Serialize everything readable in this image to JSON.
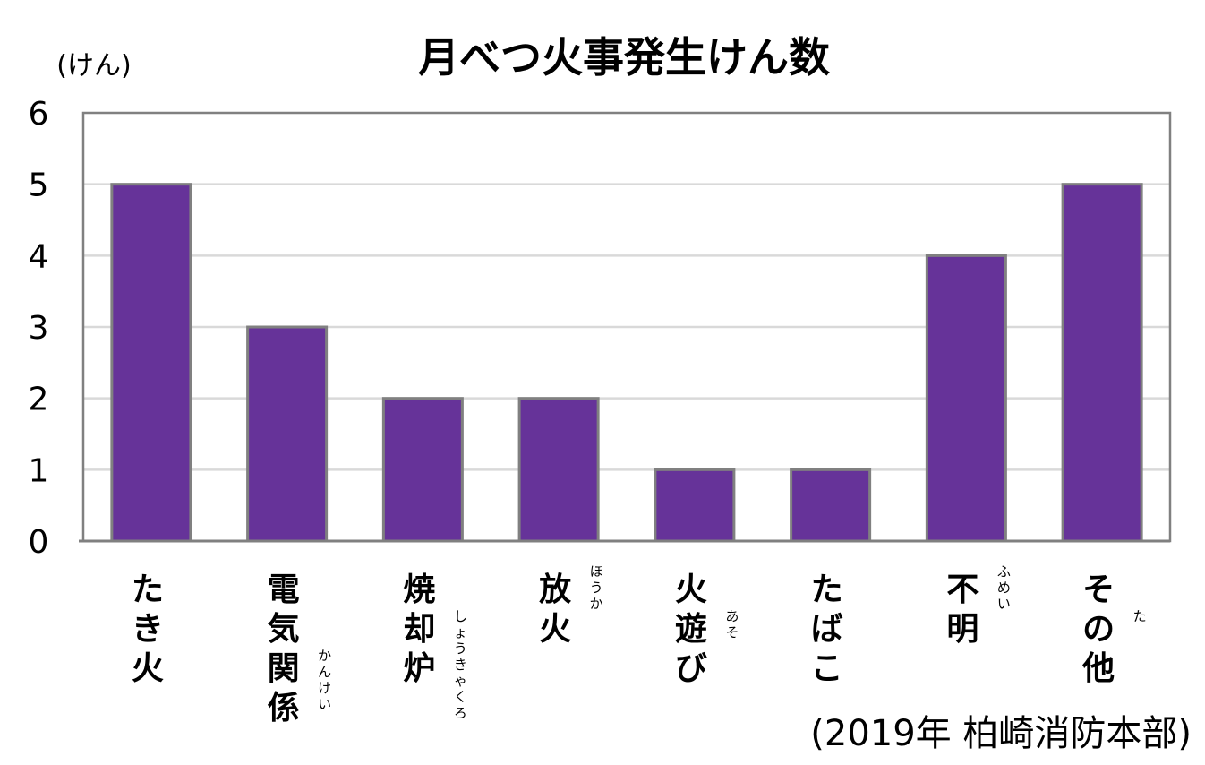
{
  "chart_data": {
    "type": "bar",
    "title": "月べつ火事発生けん数",
    "ylabel": "(けん)",
    "xlabel": "",
    "source_note": "(2019年 柏崎消防本部)",
    "ylim": [
      0,
      6
    ],
    "yticks": [
      "0",
      "1",
      "2",
      "3",
      "4",
      "5",
      "6"
    ],
    "grid": true,
    "legend": "none",
    "categories": [
      "たき火",
      "電気関係",
      "焼却炉",
      "放火",
      "火遊び",
      "たばこ",
      "不明",
      "その他"
    ],
    "category_readings": [
      "",
      "かんけい",
      "しょうきゃくろ",
      "ほうか",
      "あそ",
      "",
      "ふめい",
      "た"
    ],
    "values": [
      5,
      3,
      2,
      2,
      1,
      1,
      4,
      5
    ],
    "bar_color": "#663399",
    "bar_stroke": "#808080"
  }
}
